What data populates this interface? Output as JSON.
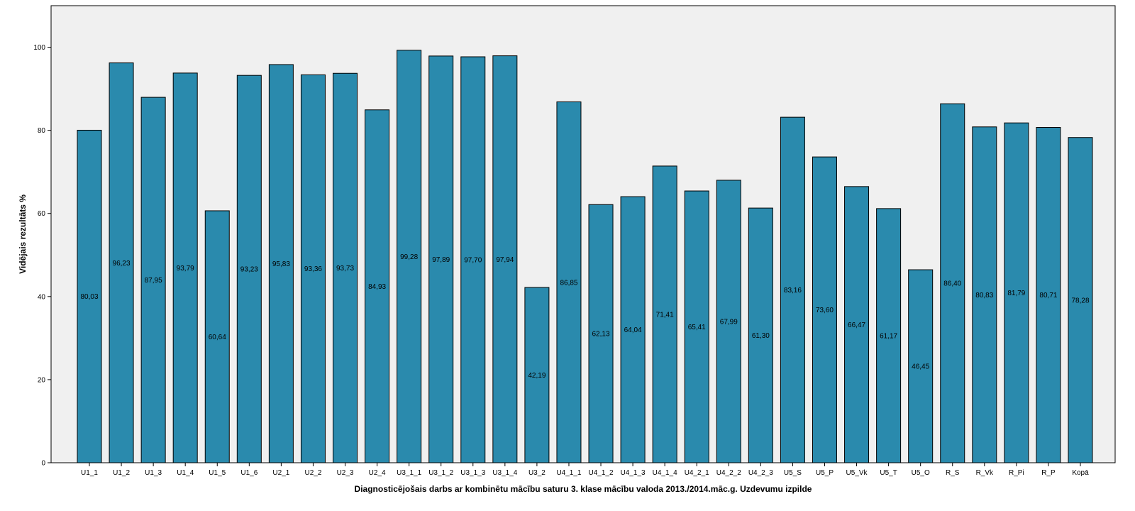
{
  "chart_data": {
    "type": "bar",
    "title": "",
    "xlabel": "Diagnosticējošais darbs ar kombinētu mācību saturu 3. klase mācību valoda 2013./2014.māc.g. Uzdevumu izpilde",
    "ylabel": "Vidējais rezultāts %",
    "ylim": [
      0,
      110
    ],
    "yticks": [
      0,
      20,
      40,
      60,
      80,
      100
    ],
    "grid": false,
    "bar_color": "#2a8aad",
    "plot_background": "#f0f0f0",
    "categories": [
      "U1_1",
      "U1_2",
      "U1_3",
      "U1_4",
      "U1_5",
      "U1_6",
      "U2_1",
      "U2_2",
      "U2_3",
      "U2_4",
      "U3_1_1",
      "U3_1_2",
      "U3_1_3",
      "U3_1_4",
      "U3_2",
      "U4_1_1",
      "U4_1_2",
      "U4_1_3",
      "U4_1_4",
      "U4_2_1",
      "U4_2_2",
      "U4_2_3",
      "U5_S",
      "U5_P",
      "U5_Vk",
      "U5_T",
      "U5_O",
      "R_S",
      "R_Vk",
      "R_Pi",
      "R_P",
      "Kopā"
    ],
    "values": [
      80.03,
      96.23,
      87.95,
      93.79,
      60.64,
      93.23,
      95.83,
      93.36,
      93.73,
      84.93,
      99.28,
      97.89,
      97.7,
      97.94,
      42.19,
      86.85,
      62.13,
      64.04,
      71.41,
      65.41,
      67.99,
      61.3,
      83.16,
      73.6,
      66.47,
      61.17,
      46.45,
      86.4,
      80.83,
      81.79,
      80.71,
      78.28
    ],
    "data_labels": [
      "80,03",
      "96,23",
      "87,95",
      "93,79",
      "60,64",
      "93,23",
      "95,83",
      "93,36",
      "93,73",
      "84,93",
      "99,28",
      "97,89",
      "97,70",
      "97,94",
      "42,19",
      "86,85",
      "62,13",
      "64,04",
      "71,41",
      "65,41",
      "67,99",
      "61,30",
      "83,16",
      "73,60",
      "66,47",
      "61,17",
      "46,45",
      "86,40",
      "80,83",
      "81,79",
      "80,71",
      "78,28"
    ]
  }
}
